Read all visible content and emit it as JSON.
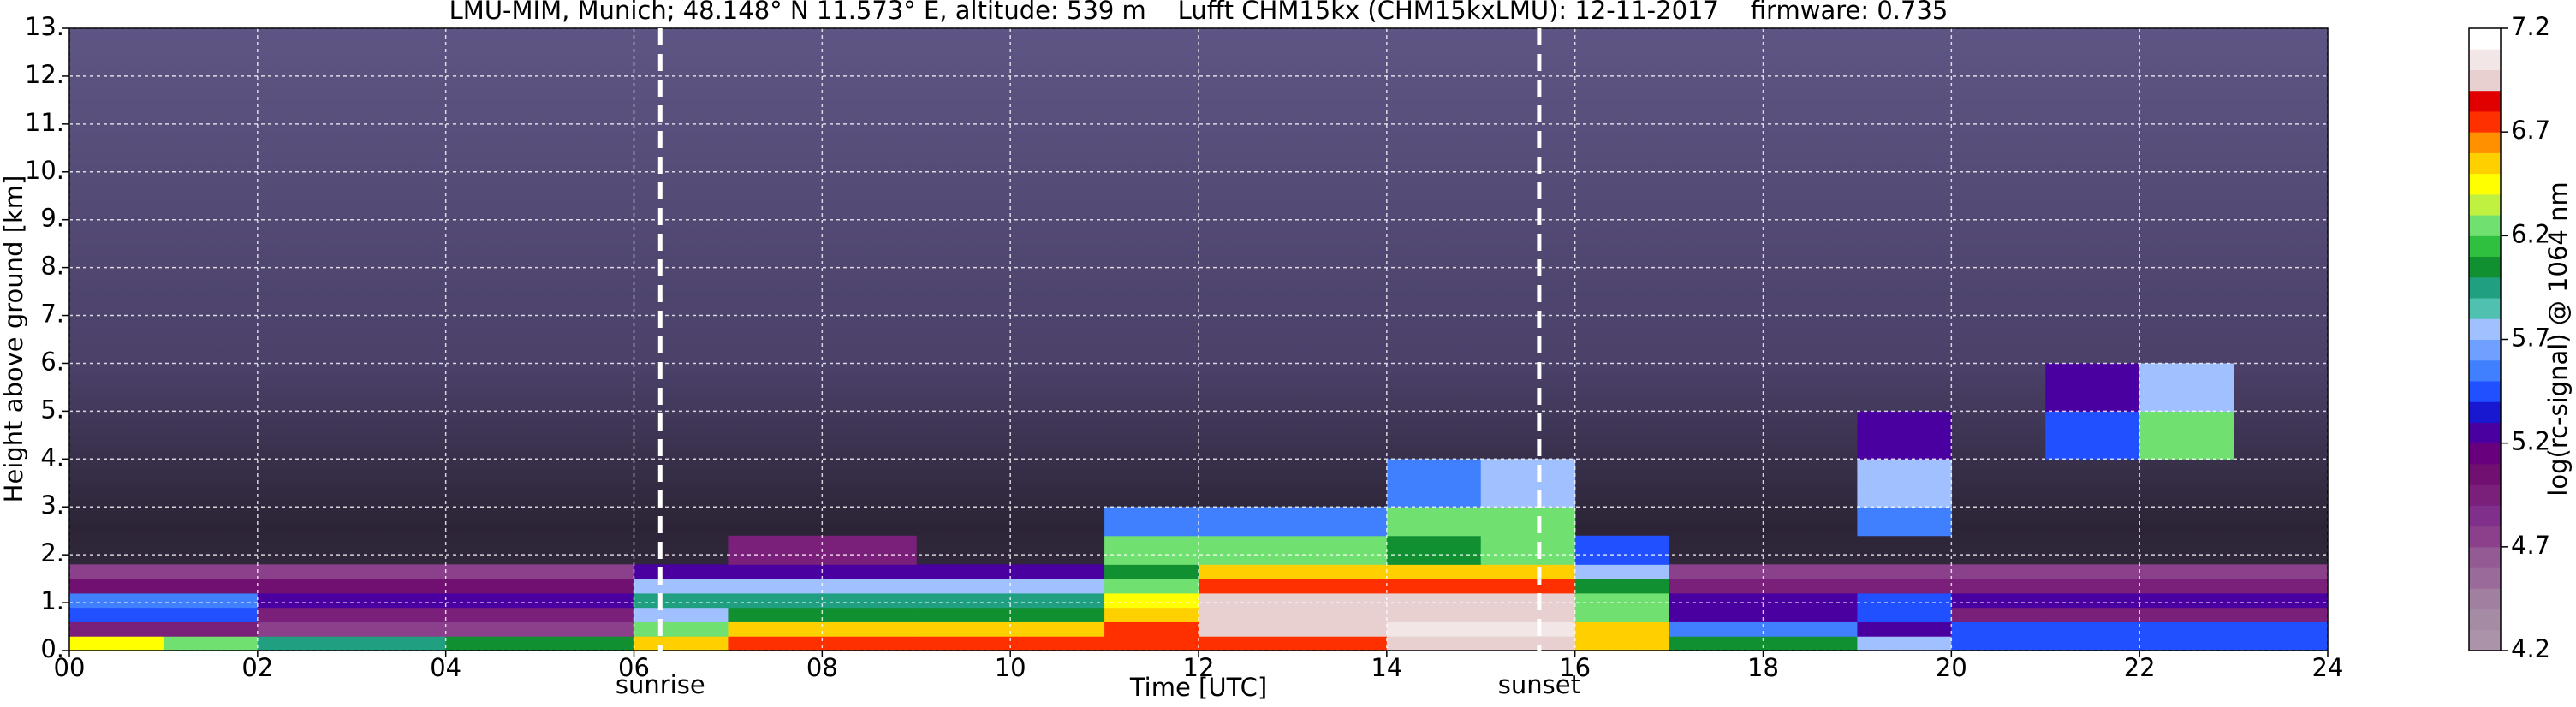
{
  "chart_data": {
    "type": "heatmap",
    "title": "LMU-MIM, Munich; 48.148° N 11.573° E, altitude: 539 m    Lufft CHM15kx (CHM15kxLMU): 12-11-2017    firmware: 0.735",
    "x_label": "Time [UTC]",
    "y_label": "Height above ground [km]",
    "colorbar_label": "log(rc-signal) @ 1064 nm",
    "xlim": [
      0,
      24
    ],
    "ylim": [
      0,
      13
    ],
    "xticks": [
      {
        "value": 0,
        "label": "00"
      },
      {
        "value": 2,
        "label": "02"
      },
      {
        "value": 4,
        "label": "04"
      },
      {
        "value": 6,
        "label": "06"
      },
      {
        "value": 8,
        "label": "08"
      },
      {
        "value": 10,
        "label": "10"
      },
      {
        "value": 12,
        "label": "12"
      },
      {
        "value": 14,
        "label": "14"
      },
      {
        "value": 16,
        "label": "16"
      },
      {
        "value": 18,
        "label": "18"
      },
      {
        "value": 20,
        "label": "20"
      },
      {
        "value": 22,
        "label": "22"
      },
      {
        "value": 24,
        "label": "24"
      }
    ],
    "yticks": [
      {
        "value": 0,
        "label": "0."
      },
      {
        "value": 1,
        "label": "1."
      },
      {
        "value": 2,
        "label": "2."
      },
      {
        "value": 3,
        "label": "3."
      },
      {
        "value": 4,
        "label": "4."
      },
      {
        "value": 5,
        "label": "5."
      },
      {
        "value": 6,
        "label": "6."
      },
      {
        "value": 7,
        "label": "7."
      },
      {
        "value": 8,
        "label": "8."
      },
      {
        "value": 9,
        "label": "9."
      },
      {
        "value": 10,
        "label": "10."
      },
      {
        "value": 11,
        "label": "11."
      },
      {
        "value": 12,
        "label": "12."
      },
      {
        "value": 13,
        "label": "13."
      }
    ],
    "clim": [
      4.2,
      7.2
    ],
    "cticks": [
      4.2,
      4.7,
      5.2,
      5.7,
      6.2,
      6.7,
      7.2
    ],
    "colormap": [
      "#ab93aa",
      "#a68ba5",
      "#a07fa0",
      "#9a6a9a",
      "#935a93",
      "#8a408a",
      "#80308a",
      "#7a1f7a",
      "#701070",
      "#68007e",
      "#4a00a0",
      "#1818d0",
      "#2050ff",
      "#4080ff",
      "#70a0ff",
      "#a0c0ff",
      "#50c0b0",
      "#20a080",
      "#109030",
      "#30c040",
      "#70e070",
      "#c0f040",
      "#ffff00",
      "#ffd000",
      "#ff9000",
      "#ff3000",
      "#e00000",
      "#e8d0d0",
      "#f2e6e6",
      "#ffffff"
    ],
    "grid": true,
    "x_edges": [
      0,
      1,
      2,
      3,
      4,
      5,
      6,
      7,
      8,
      9,
      10,
      11,
      12,
      13,
      14,
      15,
      16,
      17,
      18,
      19,
      20,
      21,
      22,
      23,
      24
    ],
    "y_edges": [
      0,
      0.3,
      0.6,
      0.9,
      1.2,
      1.5,
      1.8,
      2.4,
      3,
      4,
      5,
      6
    ],
    "z": [
      [
        6.4,
        6.2,
        5.9,
        5.9,
        6.0,
        6.0,
        6.6,
        6.8,
        6.7,
        6.7,
        6.7,
        6.7,
        6.8,
        6.8,
        6.9,
        6.9,
        6.5,
        6.0,
        6.0,
        5.8,
        5.5,
        5.5,
        5.5,
        5.5
      ],
      [
        5.0,
        5.0,
        4.8,
        4.8,
        4.8,
        4.8,
        6.2,
        6.5,
        6.5,
        6.5,
        6.5,
        6.8,
        7.0,
        7.0,
        7.1,
        7.1,
        6.6,
        5.6,
        5.6,
        5.2,
        5.4,
        5.4,
        5.4,
        5.4
      ],
      [
        5.5,
        5.5,
        5.0,
        5.0,
        5.0,
        5.0,
        5.8,
        6.1,
        6.1,
        6.1,
        6.1,
        6.6,
        7.0,
        7.0,
        6.9,
        6.9,
        6.2,
        5.3,
        5.3,
        5.4,
        5.0,
        5.0,
        5.0,
        5.0
      ],
      [
        5.6,
        5.6,
        5.3,
        5.3,
        5.3,
        5.3,
        5.9,
        5.9,
        5.9,
        5.9,
        5.9,
        6.4,
        7.0,
        7.0,
        6.9,
        6.9,
        6.3,
        5.2,
        5.2,
        5.5,
        5.2,
        5.2,
        5.2,
        5.2
      ],
      [
        5.1,
        5.1,
        5.1,
        5.1,
        5.1,
        5.1,
        5.7,
        5.7,
        5.7,
        5.7,
        5.7,
        6.2,
        6.8,
        6.8,
        6.8,
        6.8,
        6.1,
        5.0,
        5.0,
        5.0,
        5.0,
        5.0,
        5.0,
        5.0
      ],
      [
        4.8,
        4.8,
        4.8,
        4.8,
        4.8,
        4.8,
        5.3,
        5.3,
        5.3,
        5.3,
        5.3,
        6.0,
        6.5,
        6.5,
        6.5,
        6.5,
        5.8,
        4.7,
        4.7,
        4.7,
        4.7,
        4.7,
        4.7,
        4.7
      ],
      [
        null,
        null,
        null,
        null,
        null,
        null,
        null,
        5.0,
        5.0,
        null,
        null,
        6.2,
        6.2,
        6.2,
        6.0,
        6.3,
        5.5,
        null,
        null,
        null,
        null,
        null,
        null,
        null
      ],
      [
        null,
        null,
        null,
        null,
        null,
        null,
        null,
        null,
        null,
        null,
        null,
        5.6,
        5.6,
        5.6,
        6.2,
        6.2,
        null,
        null,
        null,
        5.6,
        null,
        null,
        null,
        null
      ],
      [
        null,
        null,
        null,
        null,
        null,
        null,
        null,
        null,
        null,
        null,
        null,
        null,
        null,
        null,
        5.6,
        5.8,
        null,
        null,
        null,
        5.7,
        null,
        null,
        null,
        null
      ],
      [
        null,
        null,
        null,
        null,
        null,
        null,
        null,
        null,
        null,
        null,
        null,
        null,
        null,
        null,
        null,
        null,
        null,
        null,
        null,
        5.3,
        null,
        5.5,
        6.3,
        null
      ],
      [
        null,
        null,
        null,
        null,
        null,
        null,
        null,
        null,
        null,
        null,
        null,
        null,
        null,
        null,
        null,
        null,
        null,
        null,
        null,
        null,
        null,
        5.3,
        5.8,
        null
      ]
    ],
    "annotations": [
      {
        "x": 6.28,
        "label": "sunrise"
      },
      {
        "x": 15.62,
        "label": "sunset"
      }
    ]
  }
}
